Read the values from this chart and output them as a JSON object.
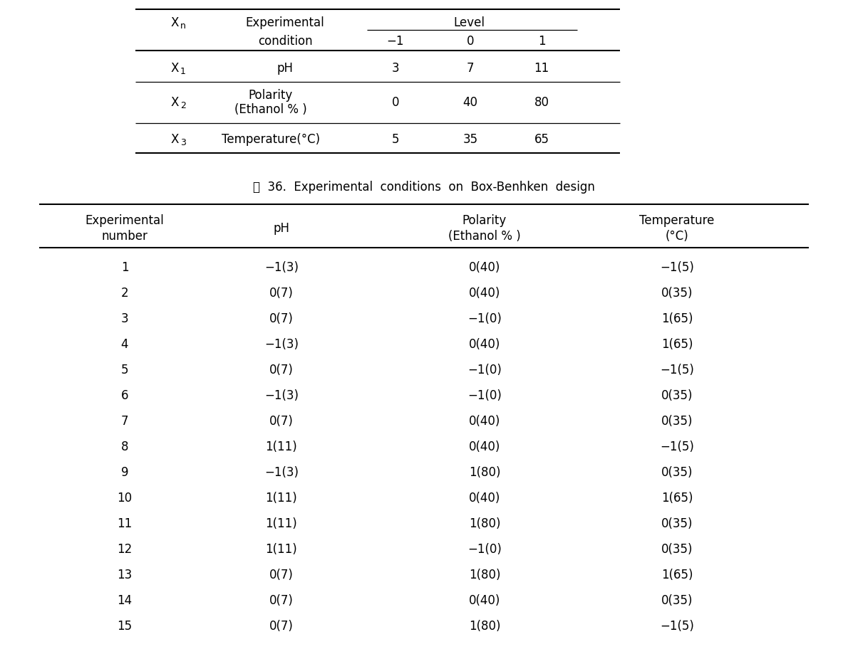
{
  "table2_caption": "表  36.  Experimental  conditions  on  Box-Benhken  design",
  "table2_rows": [
    [
      "1",
      "−1(3)",
      "0(40)",
      "−1(5)"
    ],
    [
      "2",
      "0(7)",
      "0(40)",
      "0(35)"
    ],
    [
      "3",
      "0(7)",
      "−1(0)",
      "1(65)"
    ],
    [
      "4",
      "−1(3)",
      "0(40)",
      "1(65)"
    ],
    [
      "5",
      "0(7)",
      "−1(0)",
      "−1(5)"
    ],
    [
      "6",
      "−1(3)",
      "−1(0)",
      "0(35)"
    ],
    [
      "7",
      "0(7)",
      "0(40)",
      "0(35)"
    ],
    [
      "8",
      "1(11)",
      "0(40)",
      "−1(5)"
    ],
    [
      "9",
      "−1(3)",
      "1(80)",
      "0(35)"
    ],
    [
      "10",
      "1(11)",
      "0(40)",
      "1(65)"
    ],
    [
      "11",
      "1(11)",
      "1(80)",
      "0(35)"
    ],
    [
      "12",
      "1(11)",
      "−1(0)",
      "0(35)"
    ],
    [
      "13",
      "0(7)",
      "1(80)",
      "1(65)"
    ],
    [
      "14",
      "0(7)",
      "0(40)",
      "0(35)"
    ],
    [
      "15",
      "0(7)",
      "1(80)",
      "−1(5)"
    ]
  ],
  "font_size": 12,
  "background_color": "#ffffff"
}
